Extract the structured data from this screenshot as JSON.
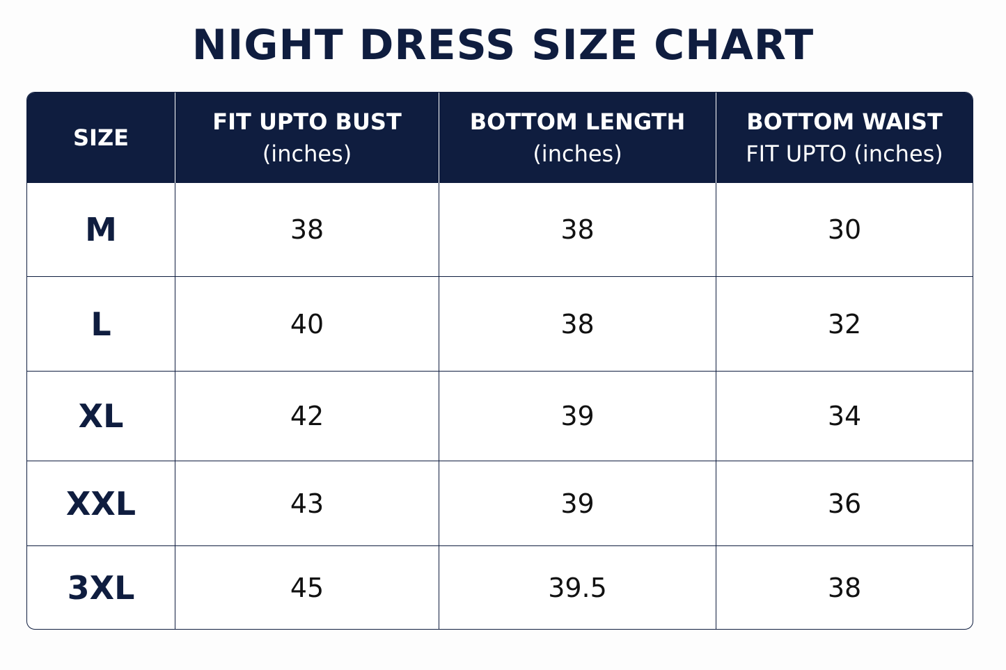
{
  "title": "NIGHT DRESS SIZE CHART",
  "table": {
    "header": [
      [
        "SIZE"
      ],
      [
        "FIT UPTO BUST",
        "(inches)"
      ],
      [
        "BOTTOM LENGTH",
        "(inches)"
      ],
      [
        "BOTTOM WAIST",
        "FIT UPTO (inches)"
      ]
    ],
    "rows": [
      [
        "M",
        38,
        38,
        30
      ],
      [
        "L",
        40,
        38,
        32
      ],
      [
        "XL",
        42,
        39,
        34
      ],
      [
        "XXL",
        43,
        39,
        36
      ],
      [
        "3XL",
        45,
        39.5,
        38
      ]
    ]
  }
}
